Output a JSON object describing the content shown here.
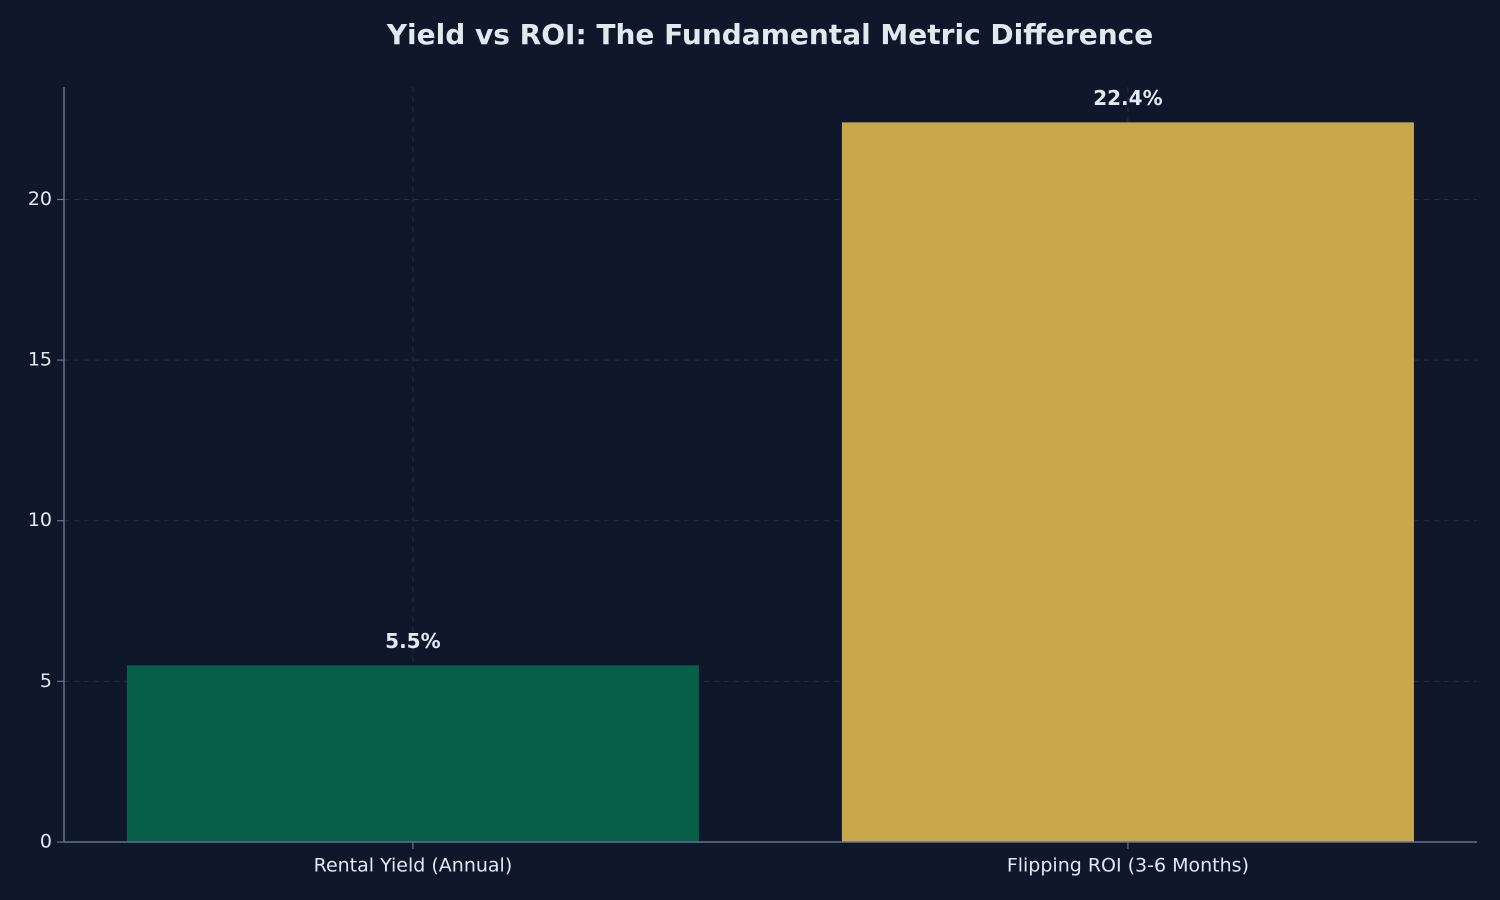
{
  "chart_data": {
    "type": "bar",
    "title": "Yield vs ROI: The Fundamental Metric Difference",
    "categories": [
      "Rental Yield (Annual)",
      "Flipping ROI (3-6 Months)"
    ],
    "values": [
      5.5,
      22.4
    ],
    "value_labels": [
      "5.5%",
      "22.4%"
    ],
    "colors": [
      "#065f46",
      "#c9a84c"
    ],
    "ylim": [
      0,
      23.5
    ],
    "yticks": [
      0,
      5,
      10,
      15,
      20
    ],
    "grid": true
  }
}
